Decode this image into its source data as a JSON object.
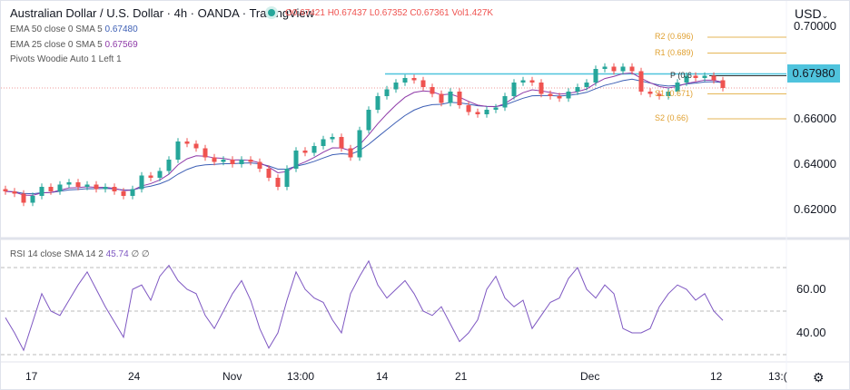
{
  "header": {
    "title": "Australian Dollar / U.S. Dollar · 4h · OANDA · TradingView",
    "ohlc": "O0.67421 H0.67437 L0.67352 C0.67361 Vol1.427K",
    "status_color": "#26a69a"
  },
  "indicators": {
    "ema50": {
      "label": "EMA 50 close 0 SMA 5",
      "value": "0.67480",
      "color": "#3d5fb5"
    },
    "ema25": {
      "label": "EMA 25 close 0 SMA 5",
      "value": "0.67569",
      "color": "#8e3aa8"
    },
    "pivots": {
      "label": "Pivots Woodie Auto 1 Left 1"
    },
    "rsi": {
      "label": "RSI 14 close SMA 14 2",
      "value": "45.74",
      "extra": "∅ ∅",
      "color": "#7e57c2"
    }
  },
  "currency": "USD",
  "price_axis": [
    "0.70000",
    "0.66000",
    "0.64000",
    "0.62000"
  ],
  "current_price": "0.67980",
  "rsi_axis": [
    "60.00",
    "40.00"
  ],
  "time_axis": [
    "17",
    "24",
    "Nov",
    "13:00",
    "14",
    "21",
    "Dec",
    "12",
    "13:("
  ],
  "pivots": [
    {
      "label": "R2 (0.696)",
      "value": 0.696
    },
    {
      "label": "R1 (0.689)",
      "value": 0.689
    },
    {
      "label": "P (0.6",
      "value": 0.679
    },
    {
      "label": "S1 (0.671)",
      "value": 0.671
    },
    {
      "label": "S2 (0.66)",
      "value": 0.66
    }
  ],
  "chart_data": {
    "type": "candlestick",
    "resistance_line": 0.6798,
    "ylim": [
      0.61,
      0.705
    ],
    "closes": [
      0.628,
      0.627,
      0.623,
      0.626,
      0.63,
      0.628,
      0.631,
      0.632,
      0.63,
      0.631,
      0.629,
      0.63,
      0.628,
      0.626,
      0.629,
      0.635,
      0.634,
      0.637,
      0.642,
      0.65,
      0.649,
      0.647,
      0.643,
      0.641,
      0.642,
      0.64,
      0.642,
      0.641,
      0.638,
      0.634,
      0.63,
      0.638,
      0.646,
      0.645,
      0.648,
      0.651,
      0.652,
      0.647,
      0.643,
      0.655,
      0.664,
      0.67,
      0.673,
      0.676,
      0.678,
      0.677,
      0.674,
      0.671,
      0.667,
      0.672,
      0.666,
      0.663,
      0.662,
      0.664,
      0.665,
      0.67,
      0.676,
      0.677,
      0.676,
      0.671,
      0.67,
      0.669,
      0.672,
      0.674,
      0.676,
      0.682,
      0.683,
      0.681,
      0.683,
      0.681,
      0.672,
      0.671,
      0.67,
      0.672,
      0.676,
      0.679,
      0.678,
      0.679,
      0.677,
      0.6736
    ],
    "rsi": [
      47,
      40,
      32,
      45,
      58,
      50,
      48,
      55,
      62,
      68,
      60,
      52,
      45,
      38,
      60,
      62,
      55,
      66,
      71,
      64,
      60,
      58,
      48,
      42,
      50,
      58,
      64,
      55,
      42,
      33,
      40,
      55,
      68,
      60,
      56,
      54,
      46,
      40,
      58,
      66,
      73,
      62,
      56,
      60,
      64,
      58,
      50,
      48,
      52,
      44,
      36,
      40,
      46,
      60,
      66,
      56,
      52,
      55,
      42,
      48,
      54,
      56,
      65,
      70,
      60,
      56,
      62,
      58,
      42,
      40,
      40,
      42,
      52,
      58,
      62,
      60,
      55,
      58,
      50,
      45.74
    ],
    "rsi_levels": [
      70,
      50,
      30
    ],
    "up_color": "#26a69a",
    "down_color": "#ef5350"
  }
}
